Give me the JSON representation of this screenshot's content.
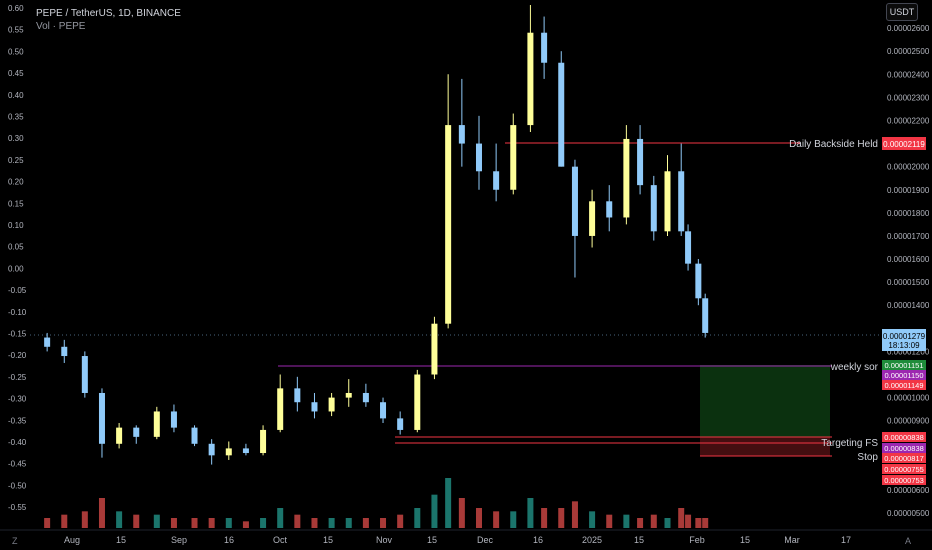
{
  "header": {
    "symbol_line": "PEPE / TetherUS, 1D, BINANCE",
    "volume_label": "Vol · PEPE",
    "currency_button": "USDT"
  },
  "left_axis": {
    "ticks": [
      "0.60",
      "0.55",
      "0.50",
      "0.45",
      "0.40",
      "0.35",
      "0.30",
      "0.25",
      "0.20",
      "0.15",
      "0.10",
      "0.05",
      "0.00",
      "-0.05",
      "-0.10",
      "-0.15",
      "-0.20",
      "-0.25",
      "-0.30",
      "-0.35",
      "-0.40",
      "-0.45",
      "-0.50",
      "-0.55"
    ]
  },
  "right_axis": {
    "ticks": [
      "0.00002600",
      "0.00002500",
      "0.00002400",
      "0.00002300",
      "0.00002200",
      "0.00002000",
      "0.00001900",
      "0.00001800",
      "0.00001700",
      "0.00001600",
      "0.00001500",
      "0.00001400",
      "0.00001200",
      "0.00001000",
      "0.00000900",
      "0.00000600",
      "0.00000500"
    ]
  },
  "time_axis": {
    "labels": [
      "Aug",
      "15",
      "Sep",
      "16",
      "Oct",
      "15",
      "Nov",
      "15",
      "Dec",
      "16",
      "2025",
      "15",
      "Feb",
      "15",
      "Mar",
      "17"
    ]
  },
  "price_tags": {
    "current_price": "0.00001279",
    "countdown": "18:13:09",
    "daily_backside": "0.00002119",
    "weekly_sor": "0.00001151",
    "tag_1150": "0.00001150",
    "tag_1149": "0.00001149",
    "tag_838a": "0.00000838",
    "tag_838b": "0.00000838",
    "tag_817": "0.00000817",
    "tag_755": "0.00000755",
    "tag_753": "0.00000753"
  },
  "annotations": {
    "daily_backside_label": "Daily Backside Held",
    "weekly_sor_label": "weekly sor",
    "targeting_label": "Targeting FS",
    "stop_label": "Stop"
  },
  "footer": {
    "left_icon_char": "Z",
    "right_icon_char": "A"
  },
  "colors": {
    "background": "#000000",
    "bull": "#ffff99",
    "bear": "#90caf9",
    "vol_up": "#26a69a",
    "vol_down": "#ef5350",
    "line_red": "#f23645",
    "line_purple": "#9c27b0",
    "target_zone": "#1b5e20",
    "stop_zone": "#b71c1c",
    "current_tag": "#90caf9"
  },
  "chart_data": {
    "type": "candlestick",
    "x_range": [
      "2024-07-15",
      "2025-03-20"
    ],
    "y_range": [
      4.7e-06,
      2.7e-05
    ],
    "candles": [
      {
        "date": "2024-07-20",
        "open": 1.26e-05,
        "high": 1.28e-05,
        "low": 1.2e-05,
        "close": 1.22e-05
      },
      {
        "date": "2024-07-25",
        "open": 1.22e-05,
        "high": 1.25e-05,
        "low": 1.15e-05,
        "close": 1.18e-05
      },
      {
        "date": "2024-07-31",
        "open": 1.18e-05,
        "high": 1.2e-05,
        "low": 1e-05,
        "close": 1.02e-05
      },
      {
        "date": "2024-08-05",
        "open": 1.02e-05,
        "high": 1.04e-05,
        "low": 7.4e-06,
        "close": 8e-06
      },
      {
        "date": "2024-08-10",
        "open": 8e-06,
        "high": 8.9e-06,
        "low": 7.8e-06,
        "close": 8.7e-06
      },
      {
        "date": "2024-08-15",
        "open": 8.7e-06,
        "high": 8.8e-06,
        "low": 8e-06,
        "close": 8.3e-06
      },
      {
        "date": "2024-08-21",
        "open": 8.3e-06,
        "high": 9.6e-06,
        "low": 8.2e-06,
        "close": 9.4e-06
      },
      {
        "date": "2024-08-26",
        "open": 9.4e-06,
        "high": 9.7e-06,
        "low": 8.5e-06,
        "close": 8.7e-06
      },
      {
        "date": "2024-09-01",
        "open": 8.7e-06,
        "high": 8.8e-06,
        "low": 7.9e-06,
        "close": 8e-06
      },
      {
        "date": "2024-09-06",
        "open": 8e-06,
        "high": 8.2e-06,
        "low": 7.1e-06,
        "close": 7.5e-06
      },
      {
        "date": "2024-09-11",
        "open": 7.5e-06,
        "high": 8.1e-06,
        "low": 7.3e-06,
        "close": 7.8e-06
      },
      {
        "date": "2024-09-16",
        "open": 7.8e-06,
        "high": 8e-06,
        "low": 7.5e-06,
        "close": 7.6e-06
      },
      {
        "date": "2024-09-21",
        "open": 7.6e-06,
        "high": 8.8e-06,
        "low": 7.5e-06,
        "close": 8.6e-06
      },
      {
        "date": "2024-09-26",
        "open": 8.6e-06,
        "high": 1.1e-05,
        "low": 8.5e-06,
        "close": 1.04e-05
      },
      {
        "date": "2024-10-01",
        "open": 1.04e-05,
        "high": 1.09e-05,
        "low": 9.4e-06,
        "close": 9.8e-06
      },
      {
        "date": "2024-10-06",
        "open": 9.8e-06,
        "high": 1.02e-05,
        "low": 9.1e-06,
        "close": 9.4e-06
      },
      {
        "date": "2024-10-11",
        "open": 9.4e-06,
        "high": 1.02e-05,
        "low": 9.2e-06,
        "close": 1e-05
      },
      {
        "date": "2024-10-16",
        "open": 1e-05,
        "high": 1.08e-05,
        "low": 9.6e-06,
        "close": 1.02e-05
      },
      {
        "date": "2024-10-21",
        "open": 1.02e-05,
        "high": 1.06e-05,
        "low": 9.6e-06,
        "close": 9.8e-06
      },
      {
        "date": "2024-10-26",
        "open": 9.8e-06,
        "high": 1e-05,
        "low": 8.9e-06,
        "close": 9.1e-06
      },
      {
        "date": "2024-10-31",
        "open": 9.1e-06,
        "high": 9.4e-06,
        "low": 8.4e-06,
        "close": 8.6e-06
      },
      {
        "date": "2024-11-05",
        "open": 8.6e-06,
        "high": 1.12e-05,
        "low": 8.5e-06,
        "close": 1.1e-05
      },
      {
        "date": "2024-11-10",
        "open": 1.1e-05,
        "high": 1.35e-05,
        "low": 1.08e-05,
        "close": 1.32e-05
      },
      {
        "date": "2024-11-14",
        "open": 1.32e-05,
        "high": 2.4e-05,
        "low": 1.3e-05,
        "close": 2.18e-05
      },
      {
        "date": "2024-11-18",
        "open": 2.18e-05,
        "high": 2.38e-05,
        "low": 2e-05,
        "close": 2.1e-05
      },
      {
        "date": "2024-11-23",
        "open": 2.1e-05,
        "high": 2.22e-05,
        "low": 1.9e-05,
        "close": 1.98e-05
      },
      {
        "date": "2024-11-28",
        "open": 1.98e-05,
        "high": 2.1e-05,
        "low": 1.85e-05,
        "close": 1.9e-05
      },
      {
        "date": "2024-12-03",
        "open": 1.9e-05,
        "high": 2.23e-05,
        "low": 1.88e-05,
        "close": 2.18e-05
      },
      {
        "date": "2024-12-08",
        "open": 2.18e-05,
        "high": 2.7e-05,
        "low": 2.15e-05,
        "close": 2.58e-05
      },
      {
        "date": "2024-12-12",
        "open": 2.58e-05,
        "high": 2.65e-05,
        "low": 2.38e-05,
        "close": 2.45e-05
      },
      {
        "date": "2024-12-17",
        "open": 2.45e-05,
        "high": 2.5e-05,
        "low": 2e-05,
        "close": 2e-05
      },
      {
        "date": "2024-12-21",
        "open": 2e-05,
        "high": 2.03e-05,
        "low": 1.52e-05,
        "close": 1.7e-05
      },
      {
        "date": "2024-12-26",
        "open": 1.7e-05,
        "high": 1.9e-05,
        "low": 1.65e-05,
        "close": 1.85e-05
      },
      {
        "date": "2024-12-31",
        "open": 1.85e-05,
        "high": 1.92e-05,
        "low": 1.72e-05,
        "close": 1.78e-05
      },
      {
        "date": "2025-01-05",
        "open": 1.78e-05,
        "high": 2.18e-05,
        "low": 1.75e-05,
        "close": 2.12e-05
      },
      {
        "date": "2025-01-09",
        "open": 2.12e-05,
        "high": 2.18e-05,
        "low": 1.88e-05,
        "close": 1.92e-05
      },
      {
        "date": "2025-01-13",
        "open": 1.92e-05,
        "high": 1.96e-05,
        "low": 1.68e-05,
        "close": 1.72e-05
      },
      {
        "date": "2025-01-17",
        "open": 1.72e-05,
        "high": 2.05e-05,
        "low": 1.7e-05,
        "close": 1.98e-05
      },
      {
        "date": "2025-01-21",
        "open": 1.98e-05,
        "high": 2.1e-05,
        "low": 1.7e-05,
        "close": 1.72e-05
      },
      {
        "date": "2025-01-23",
        "open": 1.72e-05,
        "high": 1.75e-05,
        "low": 1.55e-05,
        "close": 1.58e-05
      },
      {
        "date": "2025-01-26",
        "open": 1.58e-05,
        "high": 1.6e-05,
        "low": 1.4e-05,
        "close": 1.43e-05
      },
      {
        "date": "2025-01-28",
        "open": 1.43e-05,
        "high": 1.45e-05,
        "low": 1.26e-05,
        "close": 1.28e-05
      }
    ],
    "volume": [
      3,
      4,
      5,
      9,
      5,
      4,
      4,
      3,
      3,
      3,
      3,
      2,
      3,
      6,
      4,
      3,
      3,
      3,
      3,
      3,
      4,
      6,
      10,
      15,
      9,
      6,
      5,
      5,
      9,
      6,
      6,
      8,
      5,
      4,
      4,
      3,
      4,
      3,
      6,
      4,
      3,
      3
    ],
    "horizontal_lines": [
      {
        "label": "Daily Backside Held",
        "price": 2.119e-05
      },
      {
        "label": "weekly sor",
        "price": 1.151e-05
      },
      {
        "label": "Targeting FS",
        "price": 8.38e-06
      },
      {
        "label": "Stop",
        "price": 8.17e-06
      }
    ],
    "position_box": {
      "entry": 1.15e-05,
      "target": 8.38e-06,
      "stop": 7.55e-06
    }
  }
}
